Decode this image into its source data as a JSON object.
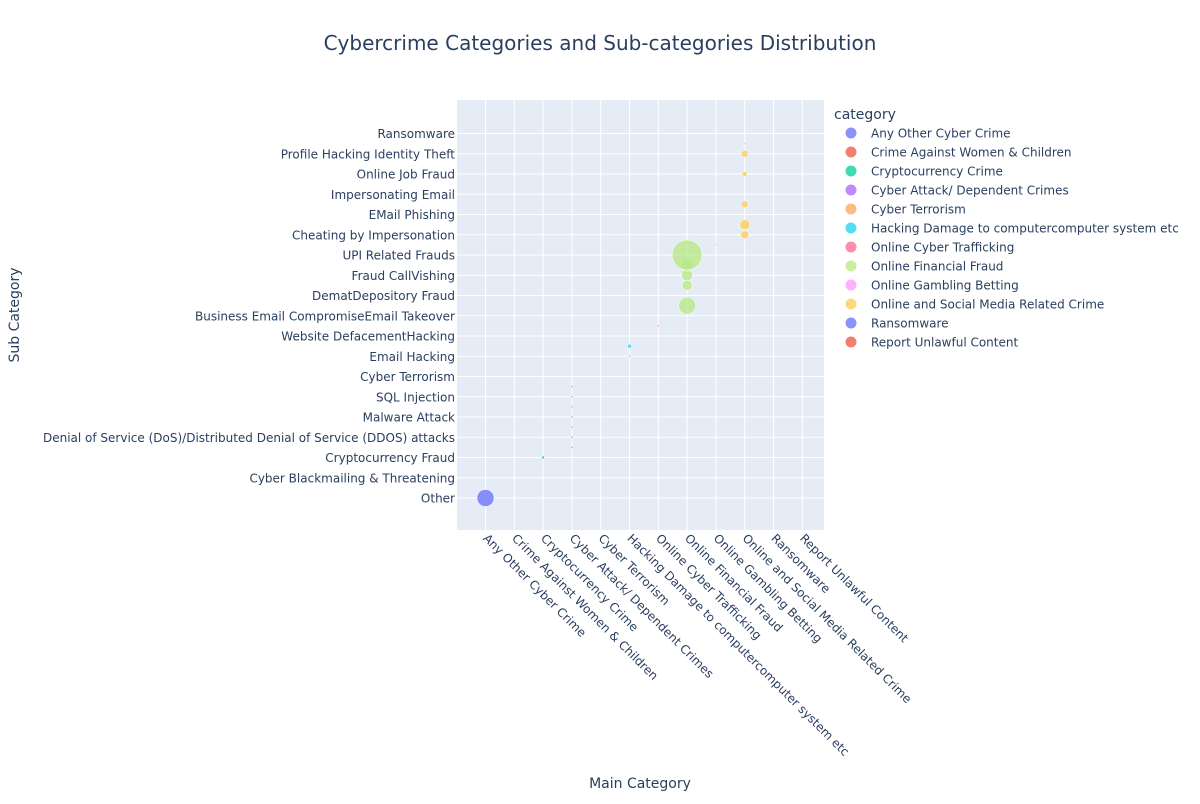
{
  "chart_data": {
    "type": "scatter",
    "title": "Cybercrime Categories and Sub-categories Distribution",
    "xlabel": "Main Category",
    "ylabel": "Sub Category",
    "legend_title": "category",
    "legend_position": "right",
    "grid": true,
    "categories": [
      "Any Other Cyber Crime",
      "Crime Against Women & Children",
      "Cryptocurrency Crime",
      "Cyber Attack/ Dependent Crimes",
      "Cyber Terrorism",
      "Hacking  Damage to computercomputer system etc",
      "Online Cyber Trafficking",
      "Online Financial Fraud",
      "Online Gambling  Betting",
      "Online and Social Media Related Crime",
      "Ransomware",
      "Report Unlawful Content"
    ],
    "y_ticks": [
      "Other",
      "Cyber Blackmailing & Threatening",
      "Cryptocurrency Fraud",
      "Denial of Service (DoS)/Distributed Denial of Service (DDOS) attacks",
      "Malware Attack",
      "SQL Injection",
      "Cyber Terrorism",
      "Email Hacking",
      "Website DefacementHacking",
      "Business Email CompromiseEmail Takeover",
      "DematDepository Fraud",
      "Fraud CallVishing",
      "UPI Related Frauds",
      "Cheating by Impersonation",
      "EMail Phishing",
      "Impersonating Email",
      "Online Job Fraud",
      "Profile Hacking Identity Theft",
      "Ransomware"
    ],
    "series": [
      {
        "name": "Any Other Cyber Crime",
        "color": "#636efa",
        "points": [
          {
            "y": 0,
            "size": 17
          }
        ]
      },
      {
        "name": "Crime Against Women & Children",
        "color": "#EF553B",
        "points": []
      },
      {
        "name": "Cryptocurrency Crime",
        "color": "#00cc96",
        "points": [
          {
            "y": 2,
            "size": 3
          }
        ]
      },
      {
        "name": "Cyber Attack/ Dependent Crimes",
        "color": "#ab63fa",
        "points": [
          {
            "y": 2.5,
            "size": 2
          },
          {
            "y": 3,
            "size": 2
          },
          {
            "y": 3.5,
            "size": 2
          },
          {
            "y": 4,
            "size": 2
          },
          {
            "y": 4.5,
            "size": 2
          },
          {
            "y": 5,
            "size": 2
          },
          {
            "y": 5.5,
            "size": 2
          }
        ]
      },
      {
        "name": "Cyber Terrorism",
        "color": "#FFA15A",
        "points": []
      },
      {
        "name": "Hacking  Damage to computercomputer system etc",
        "color": "#19d3f3",
        "points": [
          {
            "y": 7,
            "size": 2
          },
          {
            "y": 7.5,
            "size": 4
          }
        ]
      },
      {
        "name": "Online Cyber Trafficking",
        "color": "#FF6692",
        "points": [
          {
            "y": 8.5,
            "size": 2
          }
        ]
      },
      {
        "name": "Online Financial Fraud",
        "color": "#B6E880",
        "points": [
          {
            "y": 9.5,
            "size": 17
          },
          {
            "y": 10.5,
            "size": 10
          },
          {
            "y": 11,
            "size": 11
          },
          {
            "y": 11.5,
            "size": 12
          },
          {
            "y": 12,
            "size": 30
          }
        ]
      },
      {
        "name": "Online Gambling  Betting",
        "color": "#FF97FF",
        "points": [
          {
            "y": 12.5,
            "size": 2
          }
        ]
      },
      {
        "name": "Online and Social Media Related Crime",
        "color": "#FECB52",
        "points": [
          {
            "y": 13,
            "size": 8
          },
          {
            "y": 13.5,
            "size": 10
          },
          {
            "y": 14.5,
            "size": 7
          },
          {
            "y": 16,
            "size": 5
          },
          {
            "y": 17,
            "size": 7
          },
          {
            "y": 17.5,
            "size": 2
          }
        ]
      },
      {
        "name": "Ransomware",
        "color": "#636efa",
        "points": []
      },
      {
        "name": "Report Unlawful Content",
        "color": "#EF553B",
        "points": []
      }
    ]
  }
}
